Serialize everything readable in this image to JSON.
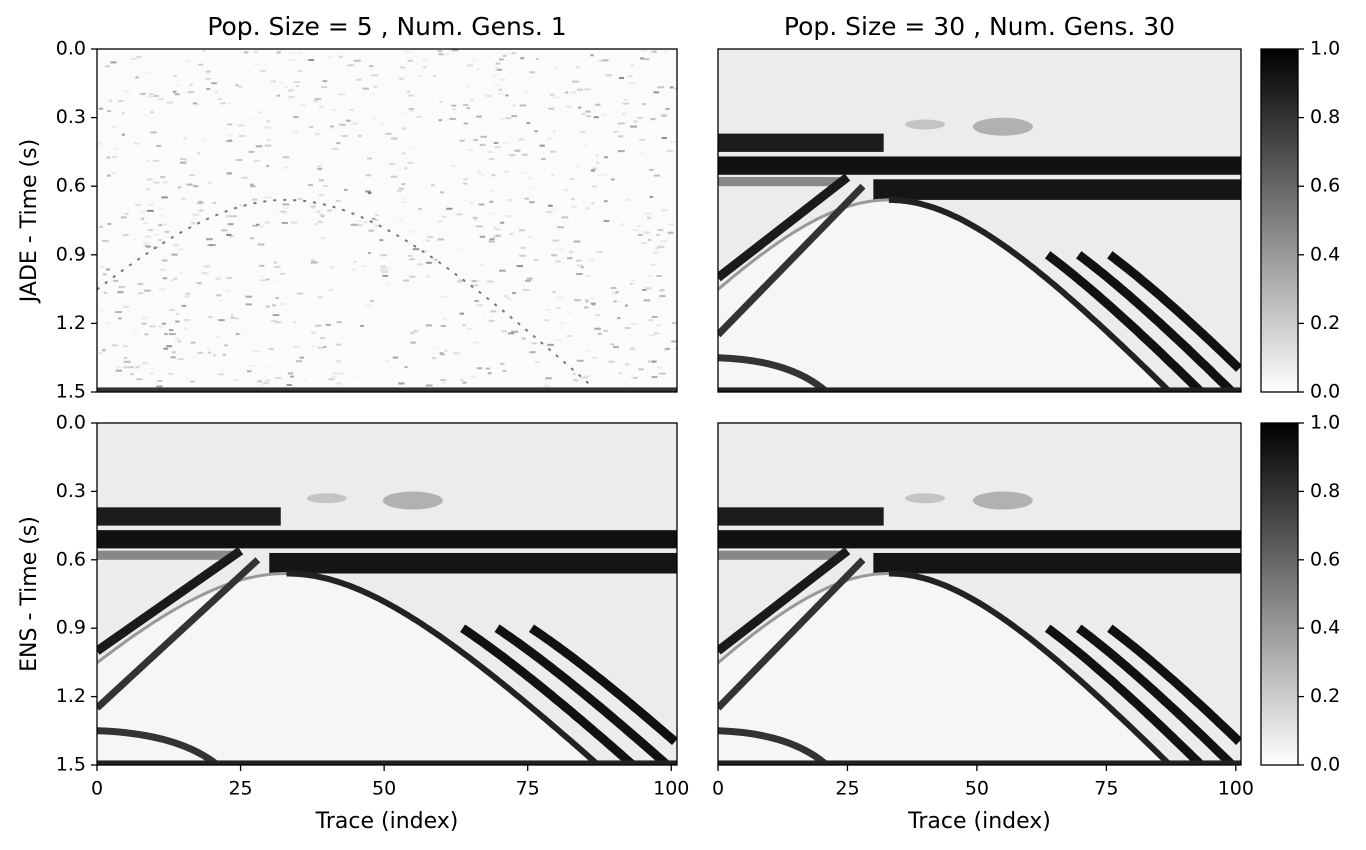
{
  "chart_data": [
    {
      "type": "heatmap",
      "title": "Pop. Size = 5 , Num. Gens. 1",
      "ylabel": "JADE - Time (s)",
      "xlim": [
        0,
        101
      ],
      "ylim": [
        0,
        1.5
      ],
      "yaxis_inverted": true,
      "yticks": [
        {
          "value": 0,
          "label": "0.0"
        },
        0.3,
        0.6,
        0.9,
        1.2,
        1.5
      ]
    },
    {
      "type": "heatmap",
      "title": "Pop. Size = 30 , Num. Gens. 30",
      "xlim": [
        0,
        101
      ],
      "ylim": [
        0,
        1.5
      ],
      "yaxis_inverted": true,
      "colorbar": {
        "lim": [
          0,
          1
        ],
        "colors": [
          "#ffffff",
          "#000000"
        ],
        "ticks": [
          {
            "value": 0,
            "label": "0.0"
          },
          0.2,
          0.4,
          0.6,
          0.8,
          {
            "value": 1,
            "label": "1.0"
          }
        ]
      }
    },
    {
      "type": "heatmap",
      "ylabel": "ENS - Time (s)",
      "xlabel": "Trace (index)",
      "xlim": [
        0,
        101
      ],
      "ylim": [
        0,
        1.5
      ],
      "yaxis_inverted": true,
      "xticks": [
        0,
        25,
        50,
        75,
        100
      ],
      "yticks": [
        {
          "value": 0,
          "label": "0.0"
        },
        0.3,
        0.6,
        0.9,
        1.2,
        1.5
      ]
    },
    {
      "type": "heatmap",
      "xlabel": "Trace (index)",
      "xlim": [
        0,
        101
      ],
      "ylim": [
        0,
        1.5
      ],
      "yaxis_inverted": true,
      "xticks": [
        0,
        25,
        50,
        75,
        100
      ],
      "colorbar": {
        "lim": [
          0,
          1
        ],
        "colors": [
          "#ffffff",
          "#000000"
        ],
        "ticks": [
          {
            "value": 0,
            "label": "0.0"
          },
          0.2,
          0.4,
          0.6,
          0.8,
          {
            "value": 1,
            "label": "1.0"
          }
        ]
      }
    }
  ]
}
